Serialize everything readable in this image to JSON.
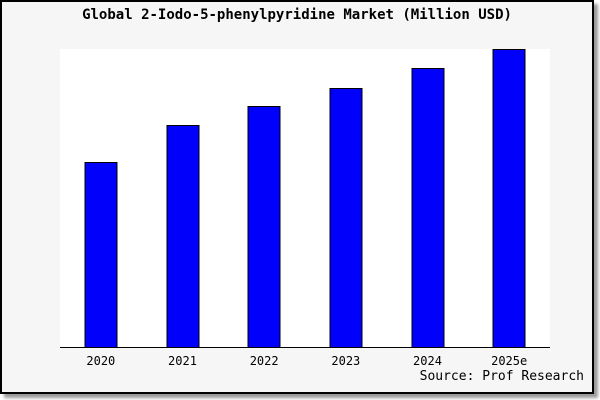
{
  "figure": {
    "source_credit": "Source: Prof Research"
  },
  "colors": {
    "bar_fill": "#0000fb",
    "bar_border": "#000000",
    "figure_background": "#f6f6f6",
    "plot_background": "#ffffff",
    "axis_line": "#000000",
    "text": "#000000"
  },
  "chart_data": {
    "type": "bar",
    "title": "Global 2-Iodo-5-phenylpyridine Market (Million USD)",
    "categories": [
      "2020",
      "2021",
      "2022",
      "2023",
      "2024",
      "2025e"
    ],
    "values": [
      62,
      74.5,
      81,
      87,
      93.5,
      100
    ],
    "xlabel": "",
    "ylabel": "",
    "ylim": [
      0,
      100
    ],
    "grid": false,
    "legend": false,
    "y_axis_visible": false,
    "note": "No y-axis scale shown in image; values are bar heights normalized to 2025e = 100"
  }
}
